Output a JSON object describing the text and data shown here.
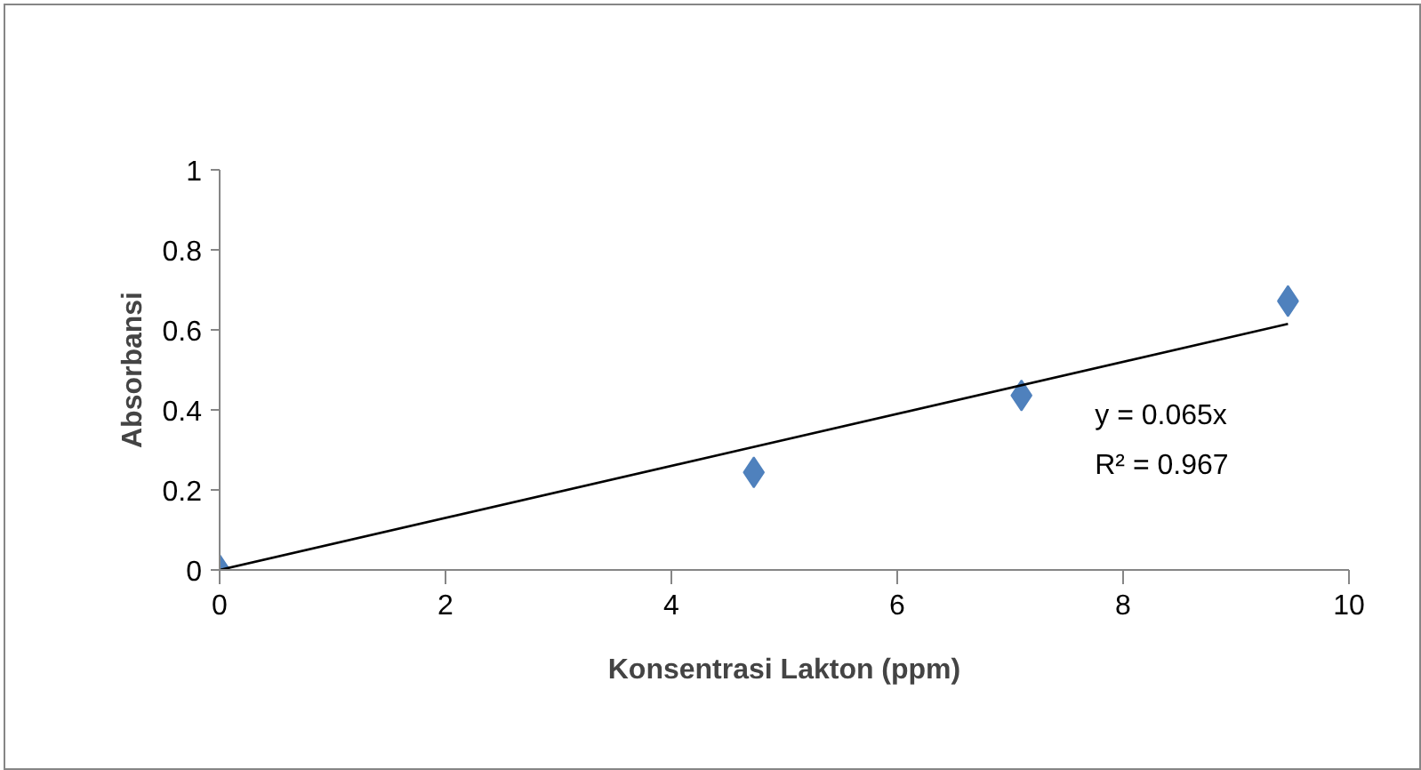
{
  "chart_data": {
    "type": "scatter",
    "xlabel": "Konsentrasi Lakton (ppm)",
    "ylabel": "Absorbansi",
    "series": [
      {
        "color": "#4f81bd",
        "marker": "diamond",
        "x": [
          0,
          4.73,
          7.1,
          9.46
        ],
        "values": [
          0,
          0.244,
          0.436,
          0.672
        ]
      },
      {
        "type": "line",
        "color": "#000000",
        "x": [
          0,
          9.46
        ],
        "values": [
          0,
          0.615
        ]
      }
    ],
    "annotations": [
      "y = 0.065x",
      "R² = 0.967"
    ],
    "grid": false,
    "xlim": [
      0,
      10
    ],
    "xticks": [
      0,
      2,
      4,
      6,
      8,
      10
    ],
    "ylim": [
      0,
      1
    ],
    "yticks": [
      0,
      0.2,
      0.4,
      0.6,
      0.8,
      1
    ]
  }
}
